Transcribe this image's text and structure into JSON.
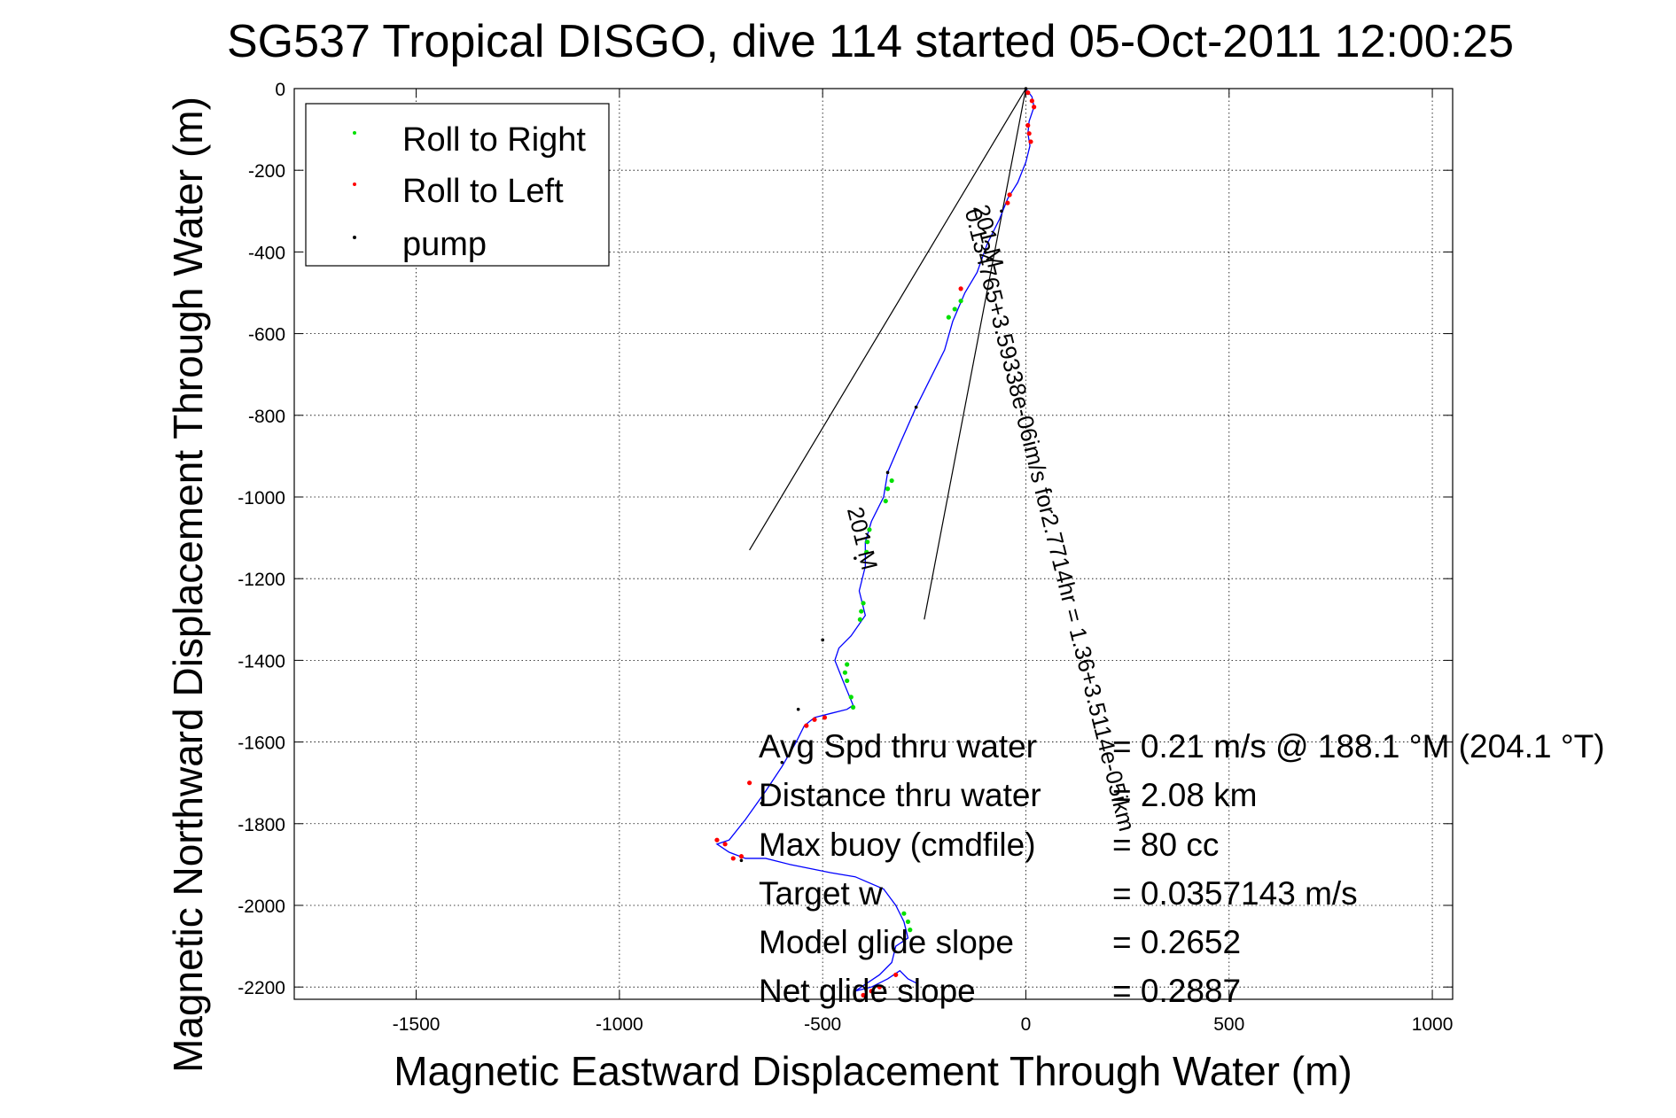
{
  "chart_data": {
    "type": "scatter",
    "title": "SG537 Tropical DISGO, dive 114 started 05-Oct-2011 12:00:25",
    "xlabel": "Magnetic Eastward Displacement Through Water (m)",
    "ylabel": "Magnetic Northward Displacement Through Water (m)",
    "xlim": [
      -1800,
      1050
    ],
    "ylim": [
      -2230,
      0
    ],
    "xticks": [
      -1500,
      -1000,
      -500,
      0,
      500,
      1000
    ],
    "yticks": [
      0,
      -200,
      -400,
      -600,
      -800,
      -1000,
      -1200,
      -1400,
      -1600,
      -1800,
      -2000,
      -2200
    ],
    "grid": true,
    "legend": {
      "placement": "top-left",
      "entries": [
        {
          "label": "Roll to Right",
          "color": "#00e000"
        },
        {
          "label": "Roll to Left",
          "color": "#ff0000"
        },
        {
          "label": "pump",
          "color": "#000000"
        }
      ]
    },
    "series": [
      {
        "name": "track",
        "color": "#0000ff",
        "points": [
          [
            0,
            0
          ],
          [
            15,
            -20
          ],
          [
            20,
            -45
          ],
          [
            8,
            -80
          ],
          [
            5,
            -110
          ],
          [
            10,
            -140
          ],
          [
            0,
            -180
          ],
          [
            -20,
            -230
          ],
          [
            -45,
            -270
          ],
          [
            -65,
            -320
          ],
          [
            -95,
            -380
          ],
          [
            -120,
            -450
          ],
          [
            -150,
            -500
          ],
          [
            -180,
            -570
          ],
          [
            -200,
            -640
          ],
          [
            -230,
            -700
          ],
          [
            -270,
            -780
          ],
          [
            -310,
            -870
          ],
          [
            -340,
            -940
          ],
          [
            -350,
            -1000
          ],
          [
            -380,
            -1060
          ],
          [
            -395,
            -1110
          ],
          [
            -395,
            -1170
          ],
          [
            -410,
            -1230
          ],
          [
            -395,
            -1290
          ],
          [
            -430,
            -1340
          ],
          [
            -460,
            -1370
          ],
          [
            -470,
            -1400
          ],
          [
            -450,
            -1450
          ],
          [
            -425,
            -1510
          ],
          [
            -440,
            -1520
          ],
          [
            -480,
            -1530
          ],
          [
            -520,
            -1540
          ],
          [
            -545,
            -1560
          ],
          [
            -565,
            -1600
          ],
          [
            -600,
            -1660
          ],
          [
            -640,
            -1720
          ],
          [
            -690,
            -1790
          ],
          [
            -730,
            -1840
          ],
          [
            -760,
            -1850
          ],
          [
            -730,
            -1870
          ],
          [
            -690,
            -1885
          ],
          [
            -640,
            -1885
          ],
          [
            -580,
            -1900
          ],
          [
            -480,
            -1920
          ],
          [
            -420,
            -1930
          ],
          [
            -350,
            -1960
          ],
          [
            -320,
            -2000
          ],
          [
            -300,
            -2040
          ],
          [
            -290,
            -2080
          ],
          [
            -320,
            -2100
          ],
          [
            -330,
            -2140
          ],
          [
            -360,
            -2170
          ],
          [
            -390,
            -2190
          ],
          [
            -420,
            -2210
          ],
          [
            -380,
            -2200
          ],
          [
            -340,
            -2180
          ],
          [
            -310,
            -2160
          ],
          [
            -290,
            -2180
          ],
          [
            -270,
            -2190
          ]
        ]
      },
      {
        "name": "Roll to Right",
        "color": "#00e000",
        "points": [
          [
            -160,
            -520
          ],
          [
            -175,
            -540
          ],
          [
            -190,
            -560
          ],
          [
            -330,
            -960
          ],
          [
            -340,
            -980
          ],
          [
            -345,
            -1010
          ],
          [
            -385,
            -1080
          ],
          [
            -390,
            -1110
          ],
          [
            -392,
            -1135
          ],
          [
            -400,
            -1260
          ],
          [
            -405,
            -1280
          ],
          [
            -408,
            -1300
          ],
          [
            -440,
            -1410
          ],
          [
            -445,
            -1430
          ],
          [
            -440,
            -1450
          ],
          [
            -430,
            -1490
          ],
          [
            -425,
            -1515
          ],
          [
            -300,
            -2020
          ],
          [
            -290,
            -2040
          ],
          [
            -285,
            -2060
          ]
        ]
      },
      {
        "name": "Roll to Left",
        "color": "#ff0000",
        "points": [
          [
            5,
            -10
          ],
          [
            15,
            -30
          ],
          [
            20,
            -45
          ],
          [
            5,
            -90
          ],
          [
            8,
            -110
          ],
          [
            12,
            -130
          ],
          [
            -40,
            -260
          ],
          [
            -45,
            -280
          ],
          [
            -160,
            -490
          ],
          [
            -495,
            -1540
          ],
          [
            -520,
            -1545
          ],
          [
            -540,
            -1560
          ],
          [
            -700,
            -1880
          ],
          [
            -720,
            -1885
          ],
          [
            -740,
            -1850
          ],
          [
            -760,
            -1840
          ],
          [
            -680,
            -1700
          ],
          [
            -360,
            -2200
          ],
          [
            -380,
            -2210
          ],
          [
            -400,
            -2220
          ],
          [
            -320,
            -2170
          ]
        ]
      },
      {
        "name": "pump",
        "color": "#000000",
        "points": [
          [
            0,
            0
          ],
          [
            -60,
            -300
          ],
          [
            -100,
            -400
          ],
          [
            -270,
            -780
          ],
          [
            -340,
            -940
          ],
          [
            -420,
            -1150
          ],
          [
            -500,
            -1350
          ],
          [
            -560,
            -1520
          ],
          [
            -600,
            -1650
          ],
          [
            -650,
            -1750
          ],
          [
            -700,
            -1890
          ]
        ]
      }
    ],
    "guide_lines": [
      {
        "from": [
          0,
          0
        ],
        "to": [
          -680,
          -1130
        ]
      },
      {
        "from": [
          0,
          0
        ],
        "to": [
          -250,
          -1300
        ]
      }
    ],
    "path_labels": [
      {
        "text": "201 M",
        "x": -130,
        "y": -290,
        "angle": 76
      },
      {
        "text": "0.134765+3.59338e-06im/s for2.7714hr = 1.36+3.5114e-05ikm",
        "x": -150,
        "y": -300,
        "angle": 76
      },
      {
        "text": "201 M",
        "x": -440,
        "y": -1030,
        "angle": 76
      }
    ],
    "annotations": {
      "labels": [
        "Avg Spd thru water",
        "Distance thru water",
        "Max buoy (cmdfile)",
        "Target w",
        "Model glide slope",
        "Net glide slope"
      ],
      "values": [
        "=  0.21 m/s @ 188.1 °M (204.1 °T)",
        "=  2.08 km",
        "= 80 cc",
        "= 0.0357143 m/s",
        "= 0.2652",
        "= 0.2887"
      ]
    }
  }
}
